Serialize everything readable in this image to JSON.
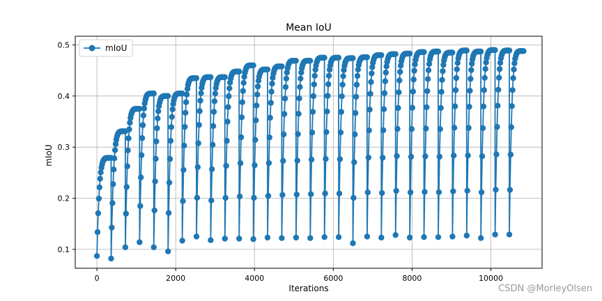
{
  "chart_data": {
    "type": "line",
    "title": "Mean IoU",
    "xlabel": "Iterations",
    "ylabel": "mIoU",
    "xlim": [
      -550,
      11300
    ],
    "ylim": [
      0.063,
      0.517
    ],
    "x_ticks": [
      0,
      2000,
      4000,
      6000,
      8000,
      10000
    ],
    "x_tick_labels": [
      "0",
      "2000",
      "4000",
      "6000",
      "8000",
      "10000"
    ],
    "y_ticks": [
      0.1,
      0.2,
      0.3,
      0.4,
      0.5
    ],
    "y_tick_labels": [
      "0.1",
      "0.2",
      "0.3",
      "0.4",
      "0.5"
    ],
    "grid": true,
    "legend": {
      "position": "top-left",
      "entries": [
        "mIoU"
      ]
    },
    "series_color": "#1f77b4",
    "series": [
      {
        "name": "mIoU",
        "marker": "circle",
        "description_of_shape": "sawtooth: one cycle per epoch, value jumps down at epoch start then climbs to the running peak",
        "epochs": [
          {
            "x_start": 0,
            "x_end": 360,
            "start": 0.087,
            "end": 0.279
          },
          {
            "x_start": 361,
            "x_end": 721,
            "start": 0.082,
            "end": 0.331
          },
          {
            "x_start": 722,
            "x_end": 1082,
            "start": 0.104,
            "end": 0.375
          },
          {
            "x_start": 1083,
            "x_end": 1443,
            "start": 0.114,
            "end": 0.405
          },
          {
            "x_start": 1444,
            "x_end": 1804,
            "start": 0.104,
            "end": 0.4
          },
          {
            "x_start": 1805,
            "x_end": 2165,
            "start": 0.096,
            "end": 0.405
          },
          {
            "x_start": 2166,
            "x_end": 2526,
            "start": 0.117,
            "end": 0.435
          },
          {
            "x_start": 2527,
            "x_end": 2887,
            "start": 0.125,
            "end": 0.437
          },
          {
            "x_start": 2888,
            "x_end": 3248,
            "start": 0.118,
            "end": 0.437
          },
          {
            "x_start": 3249,
            "x_end": 3609,
            "start": 0.121,
            "end": 0.448
          },
          {
            "x_start": 3610,
            "x_end": 3970,
            "start": 0.121,
            "end": 0.46
          },
          {
            "x_start": 3971,
            "x_end": 4331,
            "start": 0.12,
            "end": 0.452
          },
          {
            "x_start": 4332,
            "x_end": 4692,
            "start": 0.123,
            "end": 0.458
          },
          {
            "x_start": 4693,
            "x_end": 5053,
            "start": 0.122,
            "end": 0.469
          },
          {
            "x_start": 5054,
            "x_end": 5414,
            "start": 0.123,
            "end": 0.469
          },
          {
            "x_start": 5415,
            "x_end": 5775,
            "start": 0.122,
            "end": 0.475
          },
          {
            "x_start": 5776,
            "x_end": 6136,
            "start": 0.124,
            "end": 0.475
          },
          {
            "x_start": 6137,
            "x_end": 6497,
            "start": 0.124,
            "end": 0.474
          },
          {
            "x_start": 6498,
            "x_end": 6858,
            "start": 0.112,
            "end": 0.476
          },
          {
            "x_start": 6859,
            "x_end": 7219,
            "start": 0.125,
            "end": 0.48
          },
          {
            "x_start": 7220,
            "x_end": 7580,
            "start": 0.123,
            "end": 0.482
          },
          {
            "x_start": 7581,
            "x_end": 7941,
            "start": 0.128,
            "end": 0.483
          },
          {
            "x_start": 7942,
            "x_end": 8302,
            "start": 0.123,
            "end": 0.486
          },
          {
            "x_start": 8303,
            "x_end": 8663,
            "start": 0.124,
            "end": 0.487
          },
          {
            "x_start": 8664,
            "x_end": 9024,
            "start": 0.124,
            "end": 0.485
          },
          {
            "x_start": 9025,
            "x_end": 9385,
            "start": 0.125,
            "end": 0.489
          },
          {
            "x_start": 9386,
            "x_end": 9746,
            "start": 0.127,
            "end": 0.487
          },
          {
            "x_start": 9747,
            "x_end": 10107,
            "start": 0.122,
            "end": 0.49
          },
          {
            "x_start": 10108,
            "x_end": 10468,
            "start": 0.129,
            "end": 0.489
          },
          {
            "x_start": 10469,
            "x_end": 10829,
            "start": 0.129,
            "end": 0.488
          }
        ]
      }
    ]
  },
  "watermark": "CSDN @MorleyOlsen"
}
